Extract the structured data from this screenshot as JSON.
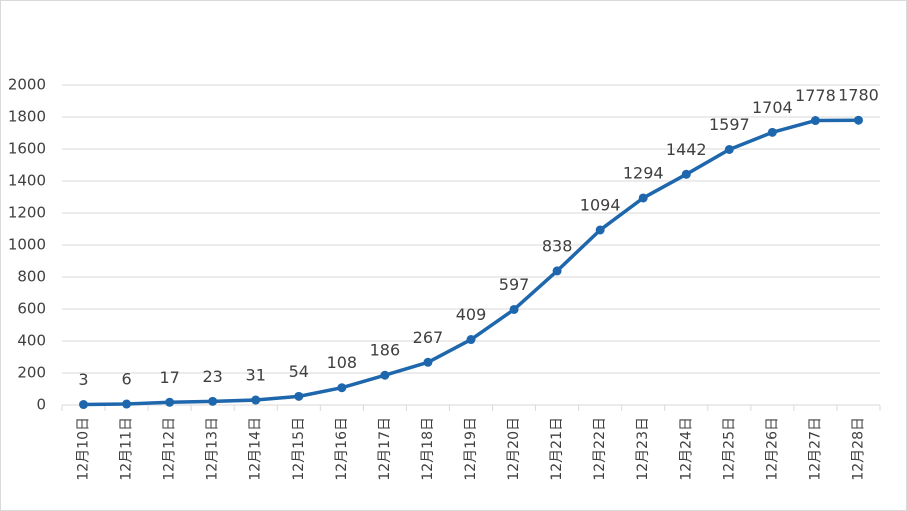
{
  "chart_data": {
    "type": "line",
    "categories": [
      "12月10日",
      "12月11日",
      "12月12日",
      "12月13日",
      "12月14日",
      "12月15日",
      "12月16日",
      "12月17日",
      "12月18日",
      "12月19日",
      "12月20日",
      "12月21日",
      "12月22日",
      "12月23日",
      "12月24日",
      "12月25日",
      "12月26日",
      "12月27日",
      "12月28日"
    ],
    "values": [
      3,
      6,
      17,
      23,
      31,
      54,
      108,
      186,
      267,
      409,
      597,
      838,
      1094,
      1294,
      1442,
      1597,
      1704,
      1778,
      1780
    ],
    "color": "#1f67ad",
    "ylim": [
      0,
      2000
    ],
    "yticks": [
      0,
      200,
      400,
      600,
      800,
      1000,
      1200,
      1400,
      1600,
      1800,
      2000
    ],
    "grid": true
  }
}
